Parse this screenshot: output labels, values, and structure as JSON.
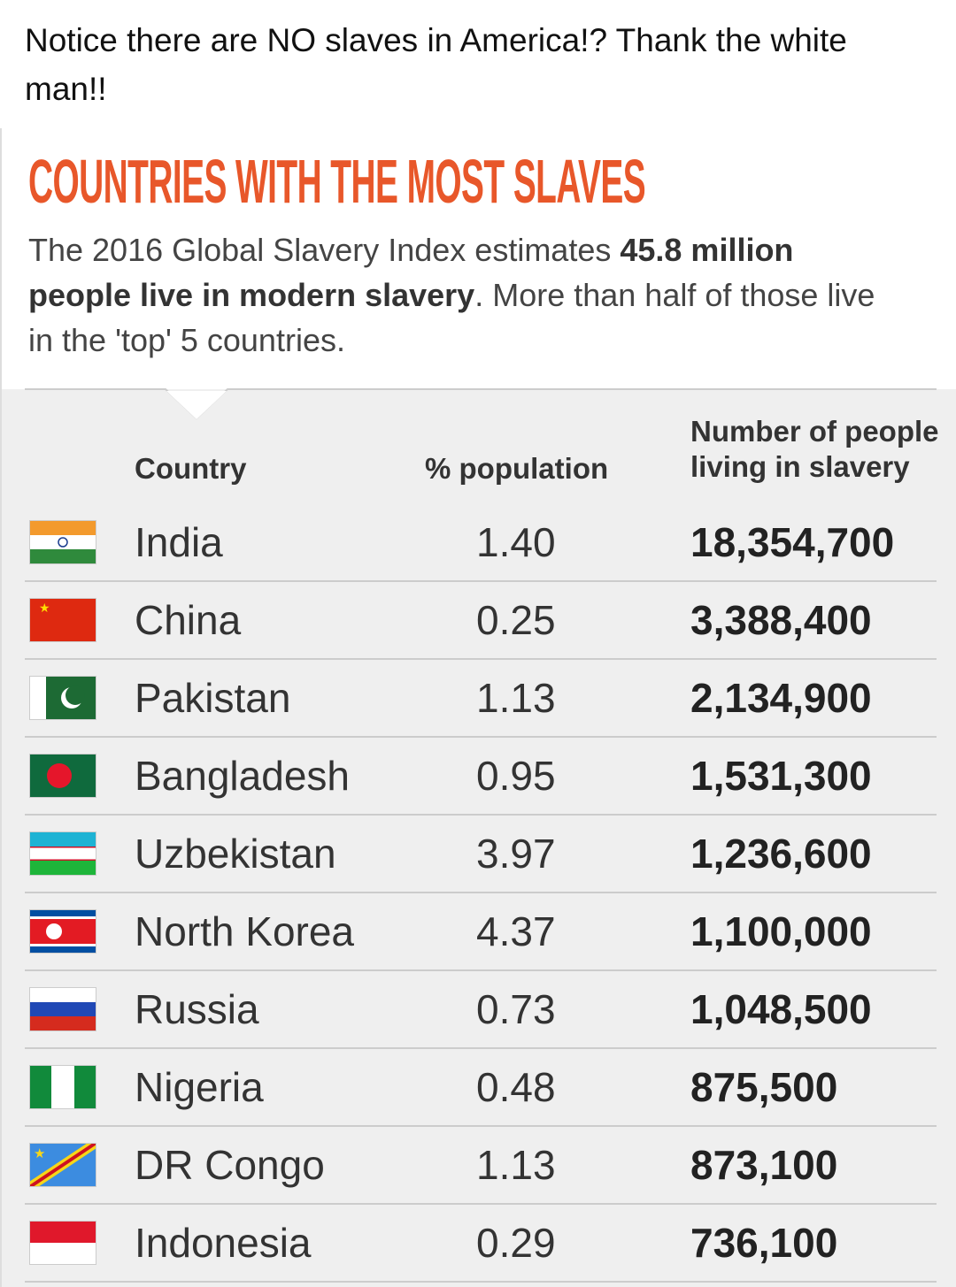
{
  "post": {
    "text": "Notice there are NO slaves in America!? Thank the white man!!"
  },
  "infographic": {
    "title": "COUNTRIES WITH THE MOST SLAVES",
    "subtitle": {
      "before": "The 2016 Global Slavery Index estimates ",
      "bold": "45.8 million people live in modern slavery",
      "after": ". More than half of those live in the 'top' 5 countries."
    },
    "table": {
      "headers": [
        "Country",
        "% population",
        "Number of people living in slavery"
      ],
      "rows": [
        [
          "India",
          "1.40",
          "18,354,700"
        ],
        [
          "China",
          "0.25",
          "3,388,400"
        ],
        [
          "Pakistan",
          "1.13",
          "2,134,900"
        ],
        [
          "Bangladesh",
          "0.95",
          "1,531,300"
        ],
        [
          "Uzbekistan",
          "3.97",
          "1,236,600"
        ],
        [
          "North Korea",
          "4.37",
          "1,100,000"
        ],
        [
          "Russia",
          "0.73",
          "1,048,500"
        ],
        [
          "Nigeria",
          "0.48",
          "875,500"
        ],
        [
          "DR Congo",
          "1.13",
          "873,100"
        ],
        [
          "Indonesia",
          "0.29",
          "736,100"
        ]
      ]
    }
  }
}
